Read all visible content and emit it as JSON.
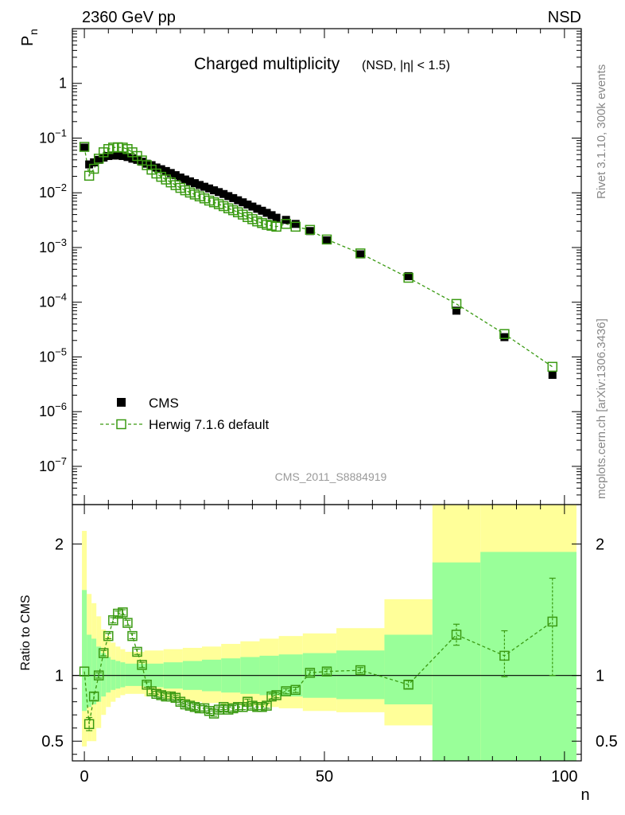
{
  "header": {
    "energy_label": "2360 GeV pp",
    "process_label": "NSD",
    "plot_title": "Charged multiplicity",
    "plot_title_sub": "(NSD, |η| < 1.5)",
    "analysis_id": "CMS_2011_S8884919",
    "rivet_label": "Rivet 3.1.10,  300k events",
    "source_label": "mcplots.cern.ch [arXiv:1306.3436]"
  },
  "colors": {
    "mc_line": "#3a9a12",
    "data_marker": "#000000",
    "band_outer": "#ffff99",
    "band_inner": "#99ff99",
    "side_text": "#888888"
  },
  "legend": {
    "items": [
      {
        "label": "CMS",
        "marker": "filled-square"
      },
      {
        "label": "Herwig 7.1.6 default",
        "marker": "open-square-dashed"
      }
    ]
  },
  "chart_data": [
    {
      "type": "scatter",
      "panel": "main",
      "ylabel": "P",
      "ylabel_sub": "n",
      "yscale": "log",
      "xlim": [
        -2.5,
        103.5
      ],
      "ylim": [
        2e-08,
        10
      ],
      "y_tick_labels": [
        "10^-7",
        "10^-6",
        "10^-5",
        "10^-4",
        "10^-3",
        "10^-2",
        "10^-1",
        "1"
      ],
      "series": [
        {
          "name": "CMS",
          "x": [
            0,
            1,
            2,
            3,
            4,
            5,
            6,
            7,
            8,
            9,
            10,
            11,
            12,
            13,
            14,
            15,
            16,
            17,
            18,
            19,
            20,
            21,
            22,
            23,
            24,
            25,
            26,
            27,
            28,
            29,
            30,
            31,
            32,
            33,
            34,
            35,
            36,
            37,
            38,
            39,
            40,
            42,
            44,
            47,
            50.5,
            57.5,
            67.5,
            77.5,
            87.5,
            97.5
          ],
          "y": [
            0.067,
            0.033,
            0.036,
            0.04,
            0.044,
            0.047,
            0.048,
            0.048,
            0.047,
            0.045,
            0.042,
            0.04,
            0.037,
            0.034,
            0.032,
            0.029,
            0.027,
            0.025,
            0.023,
            0.021,
            0.019,
            0.0175,
            0.0162,
            0.015,
            0.0139,
            0.0129,
            0.012,
            0.0111,
            0.0103,
            0.0095,
            0.0087,
            0.008,
            0.0073,
            0.0067,
            0.0061,
            0.0056,
            0.0051,
            0.0047,
            0.0043,
            0.0039,
            0.0035,
            0.0032,
            0.0027,
            0.002,
            0.00135,
            0.00075,
            0.0003,
            7e-05,
            2.3e-05,
            4.7e-06
          ]
        },
        {
          "name": "Herwig 7.1.6 default",
          "x": [
            0,
            1,
            2,
            3,
            4,
            5,
            6,
            7,
            8,
            9,
            10,
            11,
            12,
            13,
            14,
            15,
            16,
            17,
            18,
            19,
            20,
            21,
            22,
            23,
            24,
            25,
            26,
            27,
            28,
            29,
            30,
            31,
            32,
            33,
            34,
            35,
            36,
            37,
            38,
            39,
            40,
            42,
            44,
            47,
            50.5,
            57.5,
            67.5,
            77.5,
            87.5,
            97.5
          ],
          "y": [
            0.069,
            0.0205,
            0.0275,
            0.042,
            0.055,
            0.063,
            0.067,
            0.068,
            0.067,
            0.063,
            0.055,
            0.047,
            0.039,
            0.032,
            0.0265,
            0.0225,
            0.0196,
            0.0175,
            0.0155,
            0.0138,
            0.0123,
            0.0111,
            0.0101,
            0.0093,
            0.0086,
            0.0079,
            0.0072,
            0.0067,
            0.0062,
            0.0057,
            0.0052,
            0.0048,
            0.0044,
            0.004,
            0.0036,
            0.0033,
            0.003,
            0.0028,
            0.0026,
            0.0025,
            0.0024,
            0.0027,
            0.0024,
            0.0021,
            0.0014,
            0.00078,
            0.00028,
            9.3e-05,
            2.62e-05,
            6.6e-06
          ]
        }
      ]
    },
    {
      "type": "scatter",
      "panel": "ratio",
      "ylabel": "Ratio to CMS",
      "xlabel": "n",
      "xlim": [
        -2.5,
        103.5
      ],
      "ylim": [
        0.35,
        2.3
      ],
      "x_ticks": [
        0,
        50,
        100
      ],
      "y_ticks": [
        0.5,
        1,
        2
      ],
      "reference_line": 1.0,
      "band_bins": [
        {
          "lo": -0.5,
          "hi": 0.5,
          "outer": [
            0.46,
            2.1
          ],
          "inner": [
            0.73,
            1.65
          ]
        },
        {
          "lo": 0.5,
          "hi": 1.5,
          "outer": [
            0.5,
            1.62
          ],
          "inner": [
            0.76,
            1.31
          ]
        },
        {
          "lo": 1.5,
          "hi": 2.5,
          "outer": [
            0.5,
            1.55
          ],
          "inner": [
            0.78,
            1.28
          ]
        },
        {
          "lo": 2.5,
          "hi": 3.5,
          "outer": [
            0.6,
            1.45
          ],
          "inner": [
            0.8,
            1.22
          ]
        },
        {
          "lo": 3.5,
          "hi": 4.5,
          "outer": [
            0.7,
            1.35
          ],
          "inner": [
            0.84,
            1.17
          ]
        },
        {
          "lo": 4.5,
          "hi": 5.5,
          "outer": [
            0.76,
            1.3
          ],
          "inner": [
            0.87,
            1.14
          ]
        },
        {
          "lo": 5.5,
          "hi": 6.5,
          "outer": [
            0.8,
            1.25
          ],
          "inner": [
            0.89,
            1.12
          ]
        },
        {
          "lo": 6.5,
          "hi": 7.5,
          "outer": [
            0.83,
            1.22
          ],
          "inner": [
            0.9,
            1.11
          ]
        },
        {
          "lo": 7.5,
          "hi": 8.5,
          "outer": [
            0.85,
            1.2
          ],
          "inner": [
            0.91,
            1.1
          ]
        },
        {
          "lo": 8.5,
          "hi": 12.5,
          "outer": [
            0.86,
            1.18
          ],
          "inner": [
            0.92,
            1.09
          ]
        },
        {
          "lo": 12.5,
          "hi": 16.5,
          "outer": [
            0.84,
            1.19
          ],
          "inner": [
            0.91,
            1.09
          ]
        },
        {
          "lo": 16.5,
          "hi": 20.5,
          "outer": [
            0.82,
            1.2
          ],
          "inner": [
            0.9,
            1.1
          ]
        },
        {
          "lo": 20.5,
          "hi": 24.5,
          "outer": [
            0.8,
            1.21
          ],
          "inner": [
            0.89,
            1.11
          ]
        },
        {
          "lo": 24.5,
          "hi": 28.5,
          "outer": [
            0.79,
            1.22
          ],
          "inner": [
            0.88,
            1.12
          ]
        },
        {
          "lo": 28.5,
          "hi": 32.5,
          "outer": [
            0.78,
            1.24
          ],
          "inner": [
            0.87,
            1.13
          ]
        },
        {
          "lo": 32.5,
          "hi": 36.5,
          "outer": [
            0.77,
            1.26
          ],
          "inner": [
            0.86,
            1.14
          ]
        },
        {
          "lo": 36.5,
          "hi": 40.5,
          "outer": [
            0.76,
            1.28
          ],
          "inner": [
            0.85,
            1.15
          ]
        },
        {
          "lo": 40.5,
          "hi": 45.5,
          "outer": [
            0.75,
            1.3
          ],
          "inner": [
            0.84,
            1.16
          ]
        },
        {
          "lo": 45.5,
          "hi": 52.5,
          "outer": [
            0.73,
            1.32
          ],
          "inner": [
            0.83,
            1.17
          ]
        },
        {
          "lo": 52.5,
          "hi": 62.5,
          "outer": [
            0.72,
            1.36
          ],
          "inner": [
            0.82,
            1.19
          ]
        },
        {
          "lo": 62.5,
          "hi": 72.5,
          "outer": [
            0.62,
            1.58
          ],
          "inner": [
            0.78,
            1.31
          ]
        },
        {
          "lo": 72.5,
          "hi": 82.5,
          "outer": [
            0.35,
            2.3
          ],
          "inner": [
            0.35,
            1.86
          ]
        },
        {
          "lo": 82.5,
          "hi": 102.5,
          "outer": [
            0.35,
            2.3
          ],
          "inner": [
            0.35,
            1.94
          ]
        }
      ],
      "series": [
        {
          "name": "Herwig 7.1.6 default",
          "x": [
            0,
            1,
            2,
            3,
            4,
            5,
            6,
            7,
            8,
            9,
            10,
            11,
            12,
            13,
            14,
            15,
            16,
            17,
            18,
            19,
            20,
            21,
            22,
            23,
            24,
            25,
            26,
            27,
            28,
            29,
            30,
            31,
            32,
            33,
            34,
            35,
            36,
            37,
            38,
            39,
            40,
            42,
            44,
            47,
            50.5,
            57.5,
            67.5,
            77.5,
            87.5,
            97.5
          ],
          "y": [
            1.03,
            0.63,
            0.84,
            1.0,
            1.17,
            1.3,
            1.42,
            1.47,
            1.48,
            1.4,
            1.3,
            1.18,
            1.08,
            0.93,
            0.88,
            0.86,
            0.85,
            0.84,
            0.84,
            0.83,
            0.8,
            0.78,
            0.77,
            0.76,
            0.75,
            0.75,
            0.73,
            0.71,
            0.74,
            0.76,
            0.74,
            0.75,
            0.76,
            0.76,
            0.8,
            0.77,
            0.76,
            0.76,
            0.77,
            0.84,
            0.85,
            0.88,
            0.89,
            1.02,
            1.03,
            1.04,
            0.93,
            1.31,
            1.15,
            1.41
          ],
          "err_up": [
            0,
            0.05,
            0.03,
            0.02,
            0.02,
            0.02,
            0.02,
            0.02,
            0.02,
            0.02,
            0.02,
            0.02,
            0.02,
            0.02,
            0.02,
            0.02,
            0.02,
            0.02,
            0.02,
            0.02,
            0.02,
            0.02,
            0.02,
            0.02,
            0.02,
            0.02,
            0.02,
            0.02,
            0.02,
            0.02,
            0.02,
            0.02,
            0.02,
            0.02,
            0.02,
            0.02,
            0.02,
            0.02,
            0.02,
            0.02,
            0.02,
            0.02,
            0.02,
            0.02,
            0.02,
            0.02,
            0.03,
            0.08,
            0.19,
            0.33
          ],
          "err_dn": [
            0,
            0.05,
            0.03,
            0.02,
            0.02,
            0.02,
            0.02,
            0.02,
            0.02,
            0.02,
            0.02,
            0.02,
            0.02,
            0.02,
            0.02,
            0.02,
            0.02,
            0.02,
            0.02,
            0.02,
            0.02,
            0.02,
            0.02,
            0.02,
            0.02,
            0.02,
            0.02,
            0.02,
            0.02,
            0.02,
            0.02,
            0.02,
            0.02,
            0.02,
            0.02,
            0.02,
            0.02,
            0.02,
            0.02,
            0.02,
            0.02,
            0.02,
            0.02,
            0.02,
            0.02,
            0.02,
            0.03,
            0.08,
            0.16,
            0.41
          ]
        }
      ]
    }
  ]
}
